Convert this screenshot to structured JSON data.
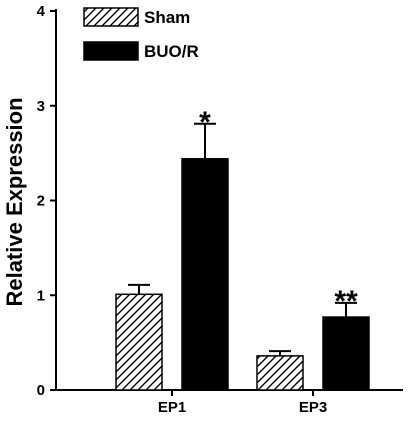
{
  "chart_data": {
    "type": "bar",
    "categories": [
      "EP1",
      "EP3"
    ],
    "series": [
      {
        "name": "Sham",
        "values": [
          1.01,
          0.36
        ],
        "errors": [
          0.1,
          0.05
        ],
        "fill": "hatched"
      },
      {
        "name": "BUO/R",
        "values": [
          2.44,
          0.77
        ],
        "errors": [
          0.37,
          0.15
        ],
        "fill": "#000000"
      }
    ],
    "significance": [
      {
        "category": "EP1",
        "series": "BUO/R",
        "label": "*"
      },
      {
        "category": "EP3",
        "series": "BUO/R",
        "label": "**"
      }
    ],
    "title": "",
    "xlabel": "",
    "ylabel": "Relative  Expression",
    "ylim": [
      0,
      4
    ],
    "yticks": [
      "0",
      "1",
      "2",
      "3",
      "4"
    ],
    "grid": false,
    "legend_position": "top-left"
  }
}
